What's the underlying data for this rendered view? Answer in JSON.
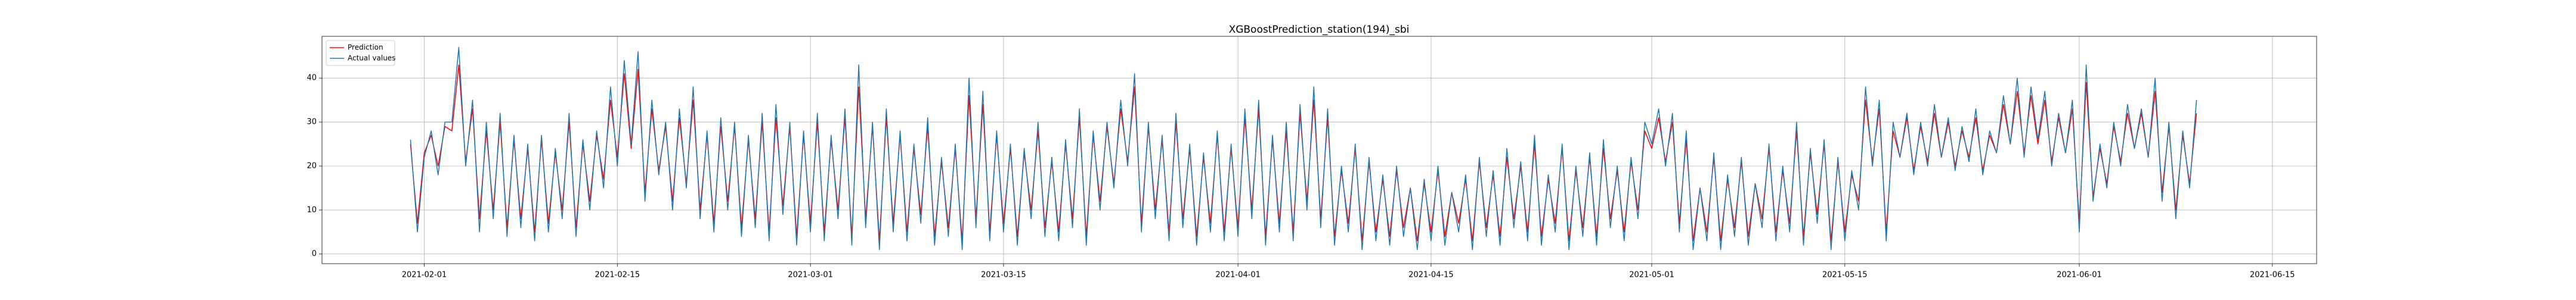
{
  "chart_data": {
    "type": "line",
    "title": "XGBoostPrediction_station(194)_sbi",
    "xlim": [
      "2021-01-24 14:00",
      "2021-06-18 05:00"
    ],
    "xticks": [
      "2021-02-01",
      "2021-02-15",
      "2021-03-01",
      "2021-03-15",
      "2021-04-01",
      "2021-04-15",
      "2021-05-01",
      "2021-05-15",
      "2021-06-01",
      "2021-06-15"
    ],
    "ylim": [
      -2.2,
      49.5
    ],
    "yticks": [
      0,
      10,
      20,
      30,
      40
    ],
    "grid": true,
    "legend": "upper left",
    "x": [
      "2021-01-31 00:00",
      "2021-01-31 12:00",
      "2021-02-01 00:00",
      "2021-02-01 12:00",
      "2021-02-02 00:00",
      "2021-02-02 12:00",
      "2021-02-03 00:00",
      "2021-02-03 12:00",
      "2021-02-04 00:00",
      "2021-02-04 12:00",
      "2021-02-05 00:00",
      "2021-02-05 12:00",
      "2021-02-06 00:00",
      "2021-02-06 12:00",
      "2021-02-07 00:00",
      "2021-02-07 12:00",
      "2021-02-08 00:00",
      "2021-02-08 12:00",
      "2021-02-09 00:00",
      "2021-02-09 12:00",
      "2021-02-10 00:00",
      "2021-02-10 12:00",
      "2021-02-11 00:00",
      "2021-02-11 12:00",
      "2021-02-12 00:00",
      "2021-02-12 12:00",
      "2021-02-13 00:00",
      "2021-02-13 12:00",
      "2021-02-14 00:00",
      "2021-02-14 12:00",
      "2021-02-15 00:00",
      "2021-02-15 12:00",
      "2021-02-16 00:00",
      "2021-02-16 12:00",
      "2021-02-17 00:00",
      "2021-02-17 12:00",
      "2021-02-18 00:00",
      "2021-02-18 12:00",
      "2021-02-19 00:00",
      "2021-02-19 12:00",
      "2021-02-20 00:00",
      "2021-02-20 12:00",
      "2021-02-21 00:00",
      "2021-02-21 12:00",
      "2021-02-22 00:00",
      "2021-02-22 12:00",
      "2021-02-23 00:00",
      "2021-02-23 12:00",
      "2021-02-24 00:00",
      "2021-02-24 12:00",
      "2021-02-25 00:00",
      "2021-02-25 12:00",
      "2021-02-26 00:00",
      "2021-02-26 12:00",
      "2021-02-27 00:00",
      "2021-02-27 12:00",
      "2021-02-28 00:00",
      "2021-02-28 12:00",
      "2021-03-01 00:00",
      "2021-03-01 12:00",
      "2021-03-02 00:00",
      "2021-03-02 12:00",
      "2021-03-03 00:00",
      "2021-03-03 12:00",
      "2021-03-04 00:00",
      "2021-03-04 12:00",
      "2021-03-05 00:00",
      "2021-03-05 12:00",
      "2021-03-06 00:00",
      "2021-03-06 12:00",
      "2021-03-07 00:00",
      "2021-03-07 12:00",
      "2021-03-08 00:00",
      "2021-03-08 12:00",
      "2021-03-09 00:00",
      "2021-03-09 12:00",
      "2021-03-10 00:00",
      "2021-03-10 12:00",
      "2021-03-11 00:00",
      "2021-03-11 12:00",
      "2021-03-12 00:00",
      "2021-03-12 12:00",
      "2021-03-13 00:00",
      "2021-03-13 12:00",
      "2021-03-14 00:00",
      "2021-03-14 12:00",
      "2021-03-15 00:00",
      "2021-03-15 12:00",
      "2021-03-16 00:00",
      "2021-03-16 12:00",
      "2021-03-17 00:00",
      "2021-03-17 12:00",
      "2021-03-18 00:00",
      "2021-03-18 12:00",
      "2021-03-19 00:00",
      "2021-03-19 12:00",
      "2021-03-20 00:00",
      "2021-03-20 12:00",
      "2021-03-21 00:00",
      "2021-03-21 12:00",
      "2021-03-22 00:00",
      "2021-03-22 12:00",
      "2021-03-23 00:00",
      "2021-03-23 12:00",
      "2021-03-24 00:00",
      "2021-03-24 12:00",
      "2021-03-25 00:00",
      "2021-03-25 12:00",
      "2021-03-26 00:00",
      "2021-03-26 12:00",
      "2021-03-27 00:00",
      "2021-03-27 12:00",
      "2021-03-28 00:00",
      "2021-03-28 12:00",
      "2021-03-29 00:00",
      "2021-03-29 12:00",
      "2021-03-30 00:00",
      "2021-03-30 12:00",
      "2021-03-31 00:00",
      "2021-03-31 12:00",
      "2021-04-01 00:00",
      "2021-04-01 12:00",
      "2021-04-02 00:00",
      "2021-04-02 12:00",
      "2021-04-03 00:00",
      "2021-04-03 12:00",
      "2021-04-04 00:00",
      "2021-04-04 12:00",
      "2021-04-05 00:00",
      "2021-04-05 12:00",
      "2021-04-06 00:00",
      "2021-04-06 12:00",
      "2021-04-07 00:00",
      "2021-04-07 12:00",
      "2021-04-08 00:00",
      "2021-04-08 12:00",
      "2021-04-09 00:00",
      "2021-04-09 12:00",
      "2021-04-10 00:00",
      "2021-04-10 12:00",
      "2021-04-11 00:00",
      "2021-04-11 12:00",
      "2021-04-12 00:00",
      "2021-04-12 12:00",
      "2021-04-13 00:00",
      "2021-04-13 12:00",
      "2021-04-14 00:00",
      "2021-04-14 12:00",
      "2021-04-15 00:00",
      "2021-04-15 12:00",
      "2021-04-16 00:00",
      "2021-04-16 12:00",
      "2021-04-17 00:00",
      "2021-04-17 12:00",
      "2021-04-18 00:00",
      "2021-04-18 12:00",
      "2021-04-19 00:00",
      "2021-04-19 12:00",
      "2021-04-20 00:00",
      "2021-04-20 12:00",
      "2021-04-21 00:00",
      "2021-04-21 12:00",
      "2021-04-22 00:00",
      "2021-04-22 12:00",
      "2021-04-23 00:00",
      "2021-04-23 12:00",
      "2021-04-24 00:00",
      "2021-04-24 12:00",
      "2021-04-25 00:00",
      "2021-04-25 12:00",
      "2021-04-26 00:00",
      "2021-04-26 12:00",
      "2021-04-27 00:00",
      "2021-04-27 12:00",
      "2021-04-28 00:00",
      "2021-04-28 12:00",
      "2021-04-29 00:00",
      "2021-04-29 12:00",
      "2021-04-30 00:00",
      "2021-04-30 12:00",
      "2021-05-01 00:00",
      "2021-05-01 12:00",
      "2021-05-02 00:00",
      "2021-05-02 12:00",
      "2021-05-03 00:00",
      "2021-05-03 12:00",
      "2021-05-04 00:00",
      "2021-05-04 12:00",
      "2021-05-05 00:00",
      "2021-05-05 12:00",
      "2021-05-06 00:00",
      "2021-05-06 12:00",
      "2021-05-07 00:00",
      "2021-05-07 12:00",
      "2021-05-08 00:00",
      "2021-05-08 12:00",
      "2021-05-09 00:00",
      "2021-05-09 12:00",
      "2021-05-10 00:00",
      "2021-05-10 12:00",
      "2021-05-11 00:00",
      "2021-05-11 12:00",
      "2021-05-12 00:00",
      "2021-05-12 12:00",
      "2021-05-13 00:00",
      "2021-05-13 12:00",
      "2021-05-14 00:00",
      "2021-05-14 12:00",
      "2021-05-15 00:00",
      "2021-05-15 12:00",
      "2021-05-16 00:00",
      "2021-05-16 12:00",
      "2021-05-17 00:00",
      "2021-05-17 12:00",
      "2021-05-18 00:00",
      "2021-05-18 12:00",
      "2021-05-19 00:00",
      "2021-05-19 12:00",
      "2021-05-20 00:00",
      "2021-05-20 12:00",
      "2021-05-21 00:00",
      "2021-05-21 12:00",
      "2021-05-22 00:00",
      "2021-05-22 12:00",
      "2021-05-23 00:00",
      "2021-05-23 12:00",
      "2021-05-24 00:00",
      "2021-05-24 12:00",
      "2021-05-25 00:00",
      "2021-05-25 12:00",
      "2021-05-26 00:00",
      "2021-05-26 12:00",
      "2021-05-27 00:00",
      "2021-05-27 12:00",
      "2021-05-28 00:00",
      "2021-05-28 12:00",
      "2021-05-29 00:00",
      "2021-05-29 12:00",
      "2021-05-30 00:00",
      "2021-05-30 12:00",
      "2021-05-31 00:00",
      "2021-05-31 12:00",
      "2021-06-01 00:00",
      "2021-06-01 12:00",
      "2021-06-02 00:00",
      "2021-06-02 12:00",
      "2021-06-03 00:00",
      "2021-06-03 12:00",
      "2021-06-04 00:00",
      "2021-06-04 12:00",
      "2021-06-05 00:00",
      "2021-06-05 12:00",
      "2021-06-06 00:00",
      "2021-06-06 12:00",
      "2021-06-07 00:00",
      "2021-06-07 12:00",
      "2021-06-08 00:00",
      "2021-06-08 12:00",
      "2021-06-09 00:00",
      "2021-06-09 12:00"
    ],
    "series": [
      {
        "name": "Prediction",
        "color": "#ff0000",
        "values": [
          25,
          7,
          23,
          27,
          20,
          29,
          28,
          43,
          21,
          33,
          8,
          28,
          10,
          30,
          6,
          26,
          8,
          24,
          5,
          26,
          7,
          23,
          10,
          30,
          6,
          25,
          12,
          27,
          17,
          35,
          22,
          41,
          24,
          42,
          14,
          33,
          19,
          29,
          12,
          31,
          16,
          35,
          10,
          27,
          7,
          29,
          12,
          29,
          6,
          26,
          8,
          30,
          5,
          31,
          11,
          29,
          4,
          27,
          7,
          30,
          5,
          26,
          10,
          31,
          4,
          38,
          8,
          29,
          3,
          31,
          7,
          27,
          5,
          24,
          9,
          29,
          4,
          21,
          6,
          24,
          3,
          36,
          8,
          34,
          5,
          27,
          7,
          24,
          4,
          23,
          10,
          28,
          6,
          21,
          5,
          25,
          8,
          31,
          4,
          27,
          12,
          29,
          16,
          33,
          21,
          38,
          7,
          29,
          10,
          26,
          5,
          30,
          8,
          24,
          4,
          22,
          7,
          27,
          5,
          24,
          6,
          31,
          10,
          33,
          4,
          26,
          7,
          28,
          5,
          32,
          12,
          35,
          8,
          31,
          4,
          19,
          7,
          24,
          3,
          21,
          5,
          17,
          4,
          19,
          6,
          15,
          3,
          16,
          5,
          19,
          4,
          14,
          7,
          17,
          3,
          21,
          6,
          18,
          4,
          22,
          8,
          20,
          5,
          25,
          4,
          17,
          7,
          24,
          3,
          19,
          6,
          22,
          4,
          24,
          8,
          19,
          5,
          21,
          10,
          28,
          24,
          31,
          21,
          30,
          7,
          26,
          3,
          15,
          5,
          22,
          3,
          17,
          6,
          21,
          4,
          16,
          8,
          24,
          5,
          19,
          7,
          28,
          4,
          23,
          9,
          25,
          3,
          21,
          5,
          18,
          12,
          35,
          21,
          33,
          5,
          28,
          22,
          31,
          19,
          29,
          21,
          32,
          22,
          30,
          20,
          28,
          22,
          31,
          19,
          27,
          23,
          34,
          25,
          37,
          23,
          36,
          25,
          35,
          21,
          31,
          23,
          33,
          7,
          39,
          13,
          24,
          16,
          29,
          21,
          32,
          24,
          32,
          22,
          37,
          14,
          29,
          10,
          27,
          16,
          32
        ]
      },
      {
        "name": "Actual values",
        "color": "#1f77b4",
        "values": [
          26,
          5,
          22,
          28,
          18,
          30,
          30,
          47,
          20,
          35,
          5,
          30,
          8,
          32,
          4,
          27,
          6,
          25,
          3,
          27,
          5,
          24,
          8,
          32,
          4,
          26,
          10,
          28,
          15,
          38,
          20,
          44,
          25,
          46,
          12,
          35,
          18,
          30,
          10,
          33,
          15,
          38,
          8,
          28,
          5,
          31,
          10,
          30,
          4,
          27,
          6,
          32,
          3,
          34,
          9,
          30,
          2,
          28,
          5,
          32,
          3,
          27,
          8,
          33,
          2,
          43,
          6,
          30,
          1,
          33,
          5,
          28,
          3,
          25,
          7,
          31,
          2,
          22,
          4,
          25,
          1,
          40,
          6,
          37,
          3,
          28,
          5,
          25,
          2,
          24,
          8,
          30,
          4,
          22,
          3,
          26,
          6,
          33,
          2,
          28,
          10,
          30,
          15,
          35,
          20,
          41,
          5,
          30,
          8,
          27,
          3,
          32,
          6,
          25,
          2,
          23,
          5,
          28,
          3,
          25,
          4,
          33,
          8,
          35,
          2,
          27,
          5,
          30,
          3,
          34,
          10,
          38,
          6,
          33,
          2,
          20,
          5,
          25,
          1,
          22,
          3,
          18,
          2,
          20,
          4,
          15,
          1,
          17,
          3,
          20,
          2,
          14,
          5,
          18,
          1,
          22,
          4,
          19,
          2,
          24,
          6,
          21,
          3,
          27,
          2,
          18,
          5,
          25,
          1,
          20,
          4,
          23,
          2,
          26,
          6,
          20,
          3,
          22,
          8,
          30,
          25,
          33,
          20,
          32,
          5,
          28,
          1,
          15,
          3,
          23,
          1,
          18,
          4,
          22,
          2,
          16,
          6,
          25,
          3,
          20,
          5,
          30,
          2,
          24,
          7,
          26,
          1,
          22,
          3,
          19,
          10,
          38,
          20,
          35,
          3,
          30,
          22,
          32,
          18,
          30,
          20,
          34,
          22,
          31,
          19,
          29,
          21,
          33,
          18,
          28,
          23,
          36,
          25,
          40,
          22,
          38,
          26,
          37,
          20,
          32,
          23,
          35,
          5,
          43,
          12,
          25,
          15,
          30,
          20,
          34,
          24,
          33,
          22,
          40,
          12,
          30,
          8,
          28,
          15,
          35
        ]
      }
    ]
  }
}
